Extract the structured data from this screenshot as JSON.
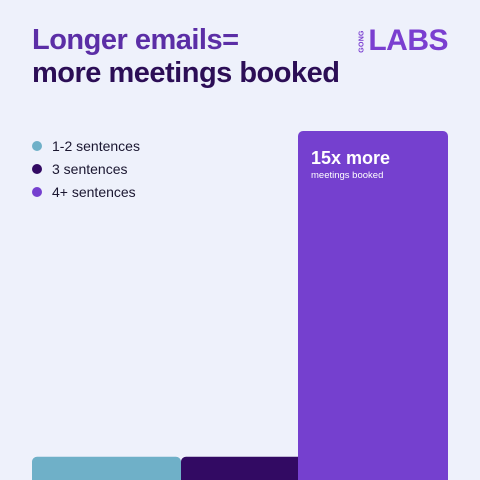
{
  "header": {
    "title_line1": "Longer emails=",
    "title_line2": "more meetings booked",
    "title_color": "#5b2ea6",
    "title_line2_color": "#2c0e56"
  },
  "logo": {
    "brand_text": "GONG",
    "labs_text": "LABS",
    "color": "#7a3fd0"
  },
  "chart_data": {
    "type": "bar",
    "categories": [
      "1-2 sentences",
      "3 sentences",
      "4+ sentences"
    ],
    "values": [
      1,
      1,
      15
    ],
    "value_unit": "relative meetings booked",
    "ylim": [
      0,
      15
    ],
    "grid": false,
    "legend": {
      "placement": "top-left",
      "entries": [
        {
          "label": "1-2 sentences",
          "color": "#6fb0c8"
        },
        {
          "label": "3 sentences",
          "color": "#320a63"
        },
        {
          "label": "4+ sentences",
          "color": "#7540cf"
        }
      ]
    },
    "annotations": [
      {
        "category": "4+ sentences",
        "title": "15x more",
        "subtitle": "meetings booked"
      }
    ]
  }
}
